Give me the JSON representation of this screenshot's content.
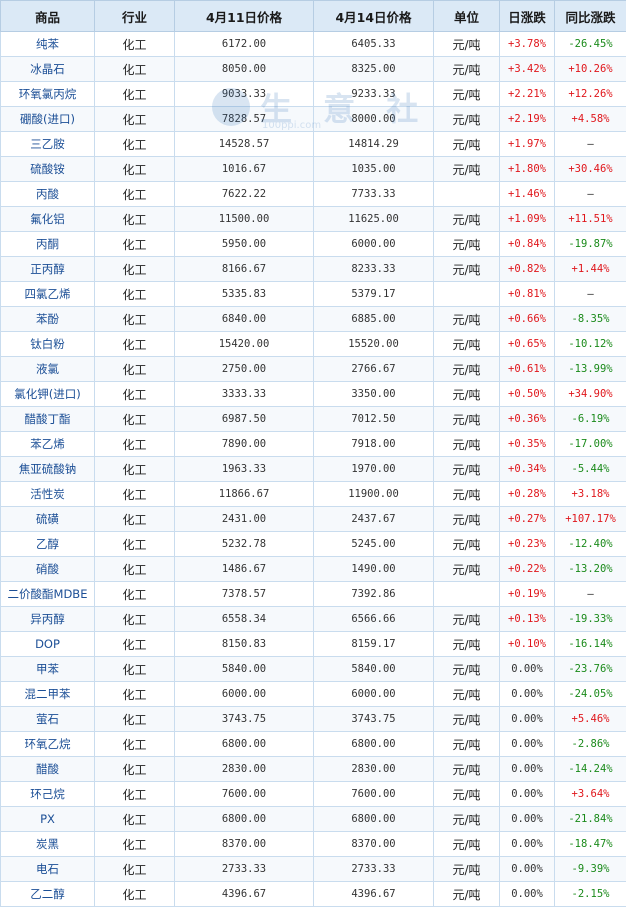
{
  "headers": [
    "商品",
    "行业",
    "4月11日价格",
    "4月14日价格",
    "单位",
    "日涨跌",
    "同比涨跌"
  ],
  "watermark": {
    "text": "生 意 社",
    "url": "100ppi.com"
  },
  "rows": [
    {
      "name": "纯苯",
      "industry": "化工",
      "p1": "6172.00",
      "p2": "6405.33",
      "unit": "元/吨",
      "day": "+3.78%",
      "yoy": "-26.45%"
    },
    {
      "name": "冰晶石",
      "industry": "化工",
      "p1": "8050.00",
      "p2": "8325.00",
      "unit": "元/吨",
      "day": "+3.42%",
      "yoy": "+10.26%"
    },
    {
      "name": "环氧氯丙烷",
      "industry": "化工",
      "p1": "9033.33",
      "p2": "9233.33",
      "unit": "元/吨",
      "day": "+2.21%",
      "yoy": "+12.26%"
    },
    {
      "name": "硼酸(进口)",
      "industry": "化工",
      "p1": "7828.57",
      "p2": "8000.00",
      "unit": "元/吨",
      "day": "+2.19%",
      "yoy": "+4.58%"
    },
    {
      "name": "三乙胺",
      "industry": "化工",
      "p1": "14528.57",
      "p2": "14814.29",
      "unit": "元/吨",
      "day": "+1.97%",
      "yoy": "—"
    },
    {
      "name": "硫酸铵",
      "industry": "化工",
      "p1": "1016.67",
      "p2": "1035.00",
      "unit": "元/吨",
      "day": "+1.80%",
      "yoy": "+30.46%"
    },
    {
      "name": "丙酸",
      "industry": "化工",
      "p1": "7622.22",
      "p2": "7733.33",
      "unit": "",
      "day": "+1.46%",
      "yoy": "—"
    },
    {
      "name": "氟化铝",
      "industry": "化工",
      "p1": "11500.00",
      "p2": "11625.00",
      "unit": "元/吨",
      "day": "+1.09%",
      "yoy": "+11.51%"
    },
    {
      "name": "丙酮",
      "industry": "化工",
      "p1": "5950.00",
      "p2": "6000.00",
      "unit": "元/吨",
      "day": "+0.84%",
      "yoy": "-19.87%"
    },
    {
      "name": "正丙醇",
      "industry": "化工",
      "p1": "8166.67",
      "p2": "8233.33",
      "unit": "元/吨",
      "day": "+0.82%",
      "yoy": "+1.44%"
    },
    {
      "name": "四氯乙烯",
      "industry": "化工",
      "p1": "5335.83",
      "p2": "5379.17",
      "unit": "",
      "day": "+0.81%",
      "yoy": "—"
    },
    {
      "name": "苯酚",
      "industry": "化工",
      "p1": "6840.00",
      "p2": "6885.00",
      "unit": "元/吨",
      "day": "+0.66%",
      "yoy": "-8.35%"
    },
    {
      "name": "钛白粉",
      "industry": "化工",
      "p1": "15420.00",
      "p2": "15520.00",
      "unit": "元/吨",
      "day": "+0.65%",
      "yoy": "-10.12%"
    },
    {
      "name": "液氯",
      "industry": "化工",
      "p1": "2750.00",
      "p2": "2766.67",
      "unit": "元/吨",
      "day": "+0.61%",
      "yoy": "-13.99%"
    },
    {
      "name": "氯化钾(进口)",
      "industry": "化工",
      "p1": "3333.33",
      "p2": "3350.00",
      "unit": "元/吨",
      "day": "+0.50%",
      "yoy": "+34.90%"
    },
    {
      "name": "醋酸丁酯",
      "industry": "化工",
      "p1": "6987.50",
      "p2": "7012.50",
      "unit": "元/吨",
      "day": "+0.36%",
      "yoy": "-6.19%"
    },
    {
      "name": "苯乙烯",
      "industry": "化工",
      "p1": "7890.00",
      "p2": "7918.00",
      "unit": "元/吨",
      "day": "+0.35%",
      "yoy": "-17.00%"
    },
    {
      "name": "焦亚硫酸钠",
      "industry": "化工",
      "p1": "1963.33",
      "p2": "1970.00",
      "unit": "元/吨",
      "day": "+0.34%",
      "yoy": "-5.44%"
    },
    {
      "name": "活性炭",
      "industry": "化工",
      "p1": "11866.67",
      "p2": "11900.00",
      "unit": "元/吨",
      "day": "+0.28%",
      "yoy": "+3.18%"
    },
    {
      "name": "硫磺",
      "industry": "化工",
      "p1": "2431.00",
      "p2": "2437.67",
      "unit": "元/吨",
      "day": "+0.27%",
      "yoy": "+107.17%"
    },
    {
      "name": "乙醇",
      "industry": "化工",
      "p1": "5232.78",
      "p2": "5245.00",
      "unit": "元/吨",
      "day": "+0.23%",
      "yoy": "-12.40%"
    },
    {
      "name": "硝酸",
      "industry": "化工",
      "p1": "1486.67",
      "p2": "1490.00",
      "unit": "元/吨",
      "day": "+0.22%",
      "yoy": "-13.20%"
    },
    {
      "name": "二价酸酯MDBE",
      "industry": "化工",
      "p1": "7378.57",
      "p2": "7392.86",
      "unit": "",
      "day": "+0.19%",
      "yoy": "—"
    },
    {
      "name": "异丙醇",
      "industry": "化工",
      "p1": "6558.34",
      "p2": "6566.66",
      "unit": "元/吨",
      "day": "+0.13%",
      "yoy": "-19.33%"
    },
    {
      "name": "DOP",
      "industry": "化工",
      "p1": "8150.83",
      "p2": "8159.17",
      "unit": "元/吨",
      "day": "+0.10%",
      "yoy": "-16.14%"
    },
    {
      "name": "甲苯",
      "industry": "化工",
      "p1": "5840.00",
      "p2": "5840.00",
      "unit": "元/吨",
      "day": "0.00%",
      "yoy": "-23.76%"
    },
    {
      "name": "混二甲苯",
      "industry": "化工",
      "p1": "6000.00",
      "p2": "6000.00",
      "unit": "元/吨",
      "day": "0.00%",
      "yoy": "-24.05%"
    },
    {
      "name": "萤石",
      "industry": "化工",
      "p1": "3743.75",
      "p2": "3743.75",
      "unit": "元/吨",
      "day": "0.00%",
      "yoy": "+5.46%"
    },
    {
      "name": "环氧乙烷",
      "industry": "化工",
      "p1": "6800.00",
      "p2": "6800.00",
      "unit": "元/吨",
      "day": "0.00%",
      "yoy": "-2.86%"
    },
    {
      "name": "醋酸",
      "industry": "化工",
      "p1": "2830.00",
      "p2": "2830.00",
      "unit": "元/吨",
      "day": "0.00%",
      "yoy": "-14.24%"
    },
    {
      "name": "环己烷",
      "industry": "化工",
      "p1": "7600.00",
      "p2": "7600.00",
      "unit": "元/吨",
      "day": "0.00%",
      "yoy": "+3.64%"
    },
    {
      "name": "PX",
      "industry": "化工",
      "p1": "6800.00",
      "p2": "6800.00",
      "unit": "元/吨",
      "day": "0.00%",
      "yoy": "-21.84%"
    },
    {
      "name": "炭黑",
      "industry": "化工",
      "p1": "8370.00",
      "p2": "8370.00",
      "unit": "元/吨",
      "day": "0.00%",
      "yoy": "-18.47%"
    },
    {
      "name": "电石",
      "industry": "化工",
      "p1": "2733.33",
      "p2": "2733.33",
      "unit": "元/吨",
      "day": "0.00%",
      "yoy": "-9.39%"
    },
    {
      "name": "乙二醇",
      "industry": "化工",
      "p1": "4396.67",
      "p2": "4396.67",
      "unit": "元/吨",
      "day": "0.00%",
      "yoy": "-2.15%"
    }
  ]
}
